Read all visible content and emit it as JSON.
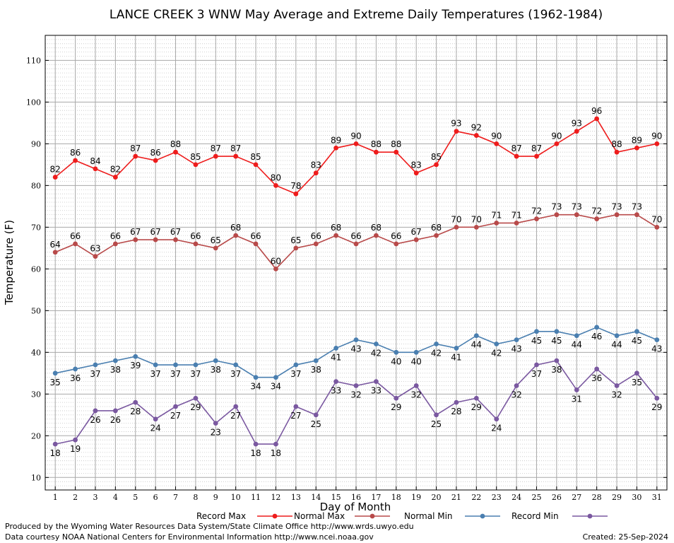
{
  "chart_data": {
    "type": "line",
    "title": "LANCE CREEK 3 WNW May Average and Extreme Daily Temperatures (1962-1984)",
    "xlabel": "Day of Month",
    "ylabel": "Temperature (F)",
    "x": [
      1,
      2,
      3,
      4,
      5,
      6,
      7,
      8,
      9,
      10,
      11,
      12,
      13,
      14,
      15,
      16,
      17,
      18,
      19,
      20,
      21,
      22,
      23,
      24,
      25,
      26,
      27,
      28,
      29,
      30,
      31
    ],
    "xlim": [
      0.5,
      31.5
    ],
    "ylim": [
      7,
      116
    ],
    "yticks": [
      10,
      20,
      30,
      40,
      50,
      60,
      70,
      80,
      90,
      100,
      110
    ],
    "grid": true,
    "legend_position": "bottom",
    "series": [
      {
        "name": "Record Max",
        "color": "#ee1c1c",
        "label_pos": "above",
        "values": [
          82,
          86,
          84,
          82,
          87,
          86,
          88,
          85,
          87,
          87,
          85,
          80,
          78,
          83,
          89,
          90,
          88,
          88,
          83,
          85,
          93,
          92,
          90,
          87,
          87,
          90,
          93,
          96,
          88,
          89,
          90
        ]
      },
      {
        "name": "Normal Max",
        "color": "#b84a4a",
        "label_pos": "above",
        "values": [
          64,
          66,
          63,
          66,
          67,
          67,
          67,
          66,
          65,
          68,
          66,
          60,
          65,
          66,
          68,
          66,
          68,
          66,
          67,
          68,
          70,
          70,
          71,
          71,
          72,
          73,
          73,
          72,
          73,
          73,
          70
        ]
      },
      {
        "name": "Normal Min",
        "color": "#4a7fb0",
        "label_pos": "below",
        "values": [
          35,
          36,
          37,
          38,
          39,
          37,
          37,
          37,
          38,
          37,
          34,
          34,
          37,
          38,
          41,
          43,
          42,
          40,
          40,
          42,
          41,
          44,
          42,
          43,
          45,
          45,
          44,
          46,
          44,
          45,
          43
        ]
      },
      {
        "name": "Record Min",
        "color": "#7a58a0",
        "label_pos": "below",
        "values": [
          18,
          19,
          26,
          26,
          28,
          24,
          27,
          29,
          23,
          27,
          18,
          18,
          27,
          25,
          33,
          32,
          33,
          29,
          32,
          25,
          28,
          29,
          24,
          32,
          37,
          38,
          31,
          36,
          32,
          35,
          29
        ]
      }
    ]
  },
  "footer": {
    "produced_by": "Produced by the Wyoming Water Resources Data System/State Climate Office http://www.wrds.uwyo.edu",
    "data_courtesy": "Data courtesy NOAA National Centers for Environmental Information http://www.ncei.noaa.gov",
    "created": "Created: 25-Sep-2024"
  }
}
